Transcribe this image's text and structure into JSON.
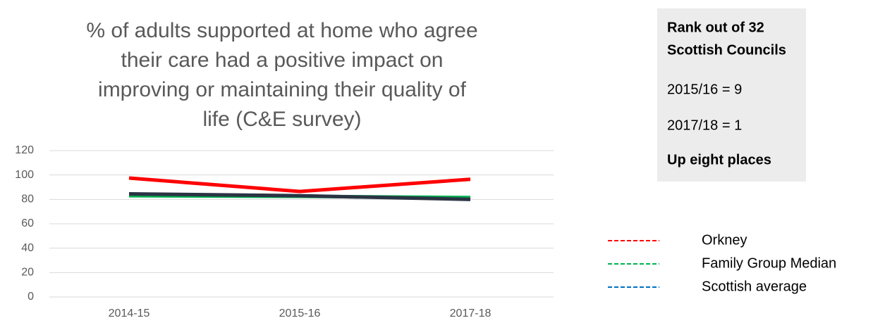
{
  "chart_data": {
    "type": "line",
    "title": [
      "% of adults supported at home who agree",
      "their care had a positive impact on",
      "improving or maintaining their quality of",
      "life (C&E survey)"
    ],
    "categories": [
      "2014-15",
      "2015-16",
      "2017-18"
    ],
    "series": [
      {
        "name": "Orkney",
        "color": "#ff0000",
        "legend_color": "#ff0000",
        "values": [
          97.5,
          86.5,
          96.5
        ]
      },
      {
        "name": "Family Group Median",
        "color": "#00b050",
        "legend_color": "#00b050",
        "values": [
          83,
          82.5,
          81.5
        ]
      },
      {
        "name": "Scottish average",
        "color": "#2b3444",
        "legend_color": "#0070c0",
        "values": [
          84.5,
          83,
          80
        ]
      }
    ],
    "ylim": [
      0,
      120
    ],
    "yticks": [
      0,
      20,
      40,
      60,
      80,
      100,
      120
    ],
    "grid": true,
    "legend": "right"
  },
  "rank_box": {
    "title": [
      "Rank out of 32",
      "Scottish Councils"
    ],
    "lines": [
      "2015/16 = 9",
      "2017/18 = 1"
    ],
    "change": "Up eight places",
    "change_color": "#00b050"
  }
}
